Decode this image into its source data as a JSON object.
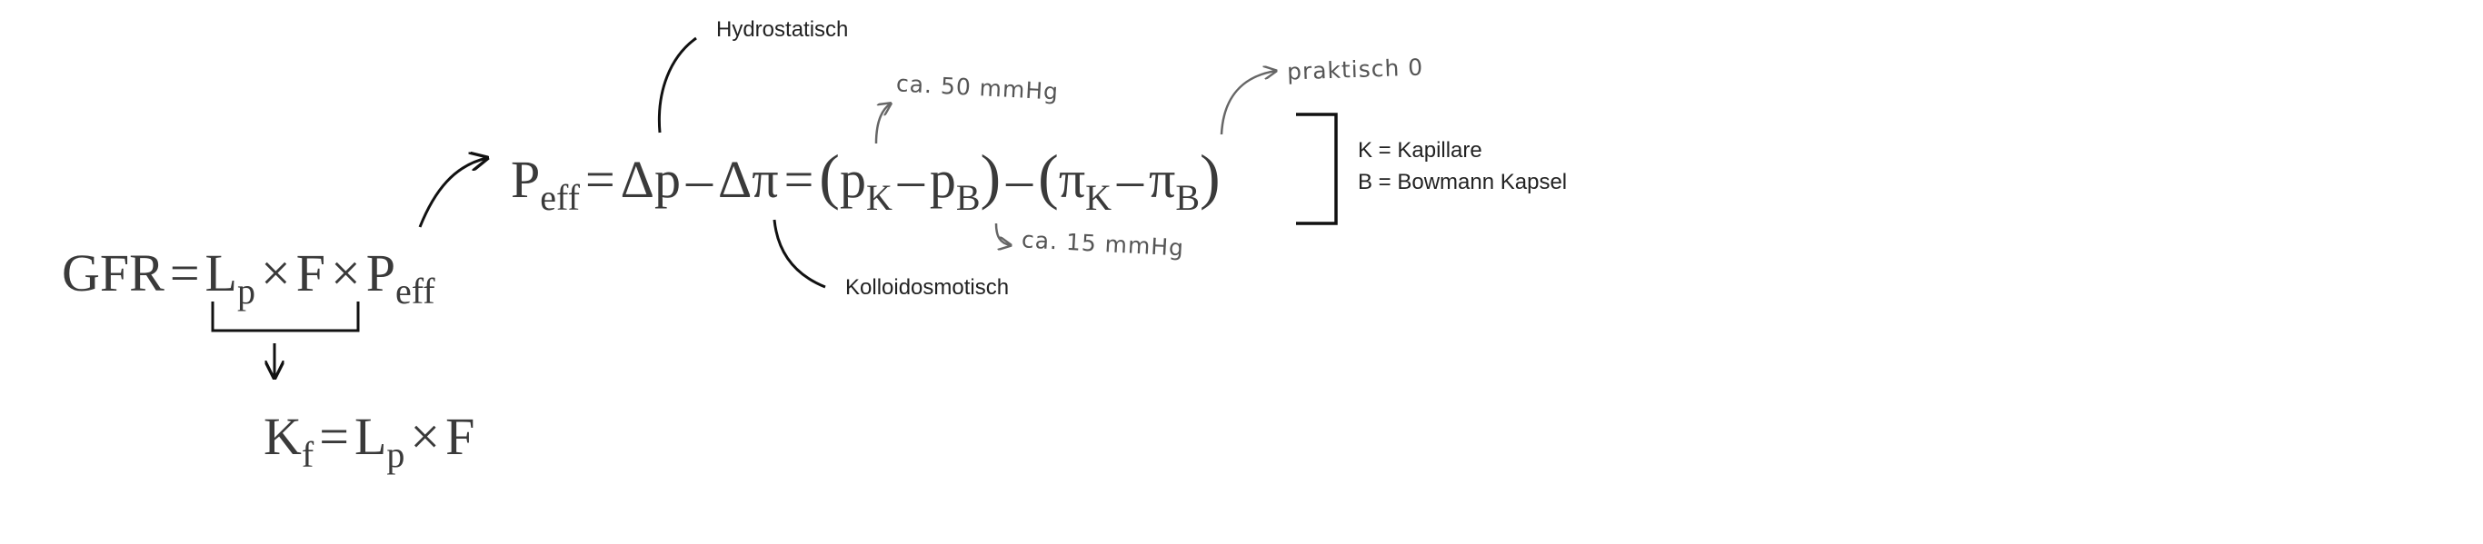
{
  "formulas": {
    "gfr": {
      "lhs": "GFR",
      "eq": "=",
      "l": "L",
      "l_sub": "p",
      "times1": "×",
      "f": "F",
      "times2": "×",
      "p": "P",
      "p_sub": "eff"
    },
    "peff": {
      "p": "P",
      "p_sub": "eff",
      "eq1": "=",
      "dp": "Δp",
      "minus1": "–",
      "dpi": "Δπ",
      "eq2": "=",
      "open1": "(",
      "pk": "p",
      "pk_sub": "K",
      "minus2": "–",
      "pb": "p",
      "pb_sub": "B",
      "close1": ")",
      "minus3": "–",
      "open2": "(",
      "pik": "π",
      "pik_sub": "K",
      "minus4": "–",
      "pib": "π",
      "pib_sub": "B",
      "close2": ")"
    },
    "kf": {
      "k": "K",
      "k_sub": "f",
      "eq": "=",
      "l": "L",
      "l_sub": "p",
      "times": "×",
      "f": "F"
    }
  },
  "labels": {
    "hydrostatic": "Hydrostatisch",
    "colloid_osmotic": "Kolloidosmotisch",
    "legend_k": "K = Kapillare",
    "legend_b": "B = Bowmann Kapsel"
  },
  "handwritten": {
    "ca50": "ca. 50 mmHg",
    "ca15": "ca. 15 mmHg",
    "practically_zero": "praktisch 0"
  }
}
